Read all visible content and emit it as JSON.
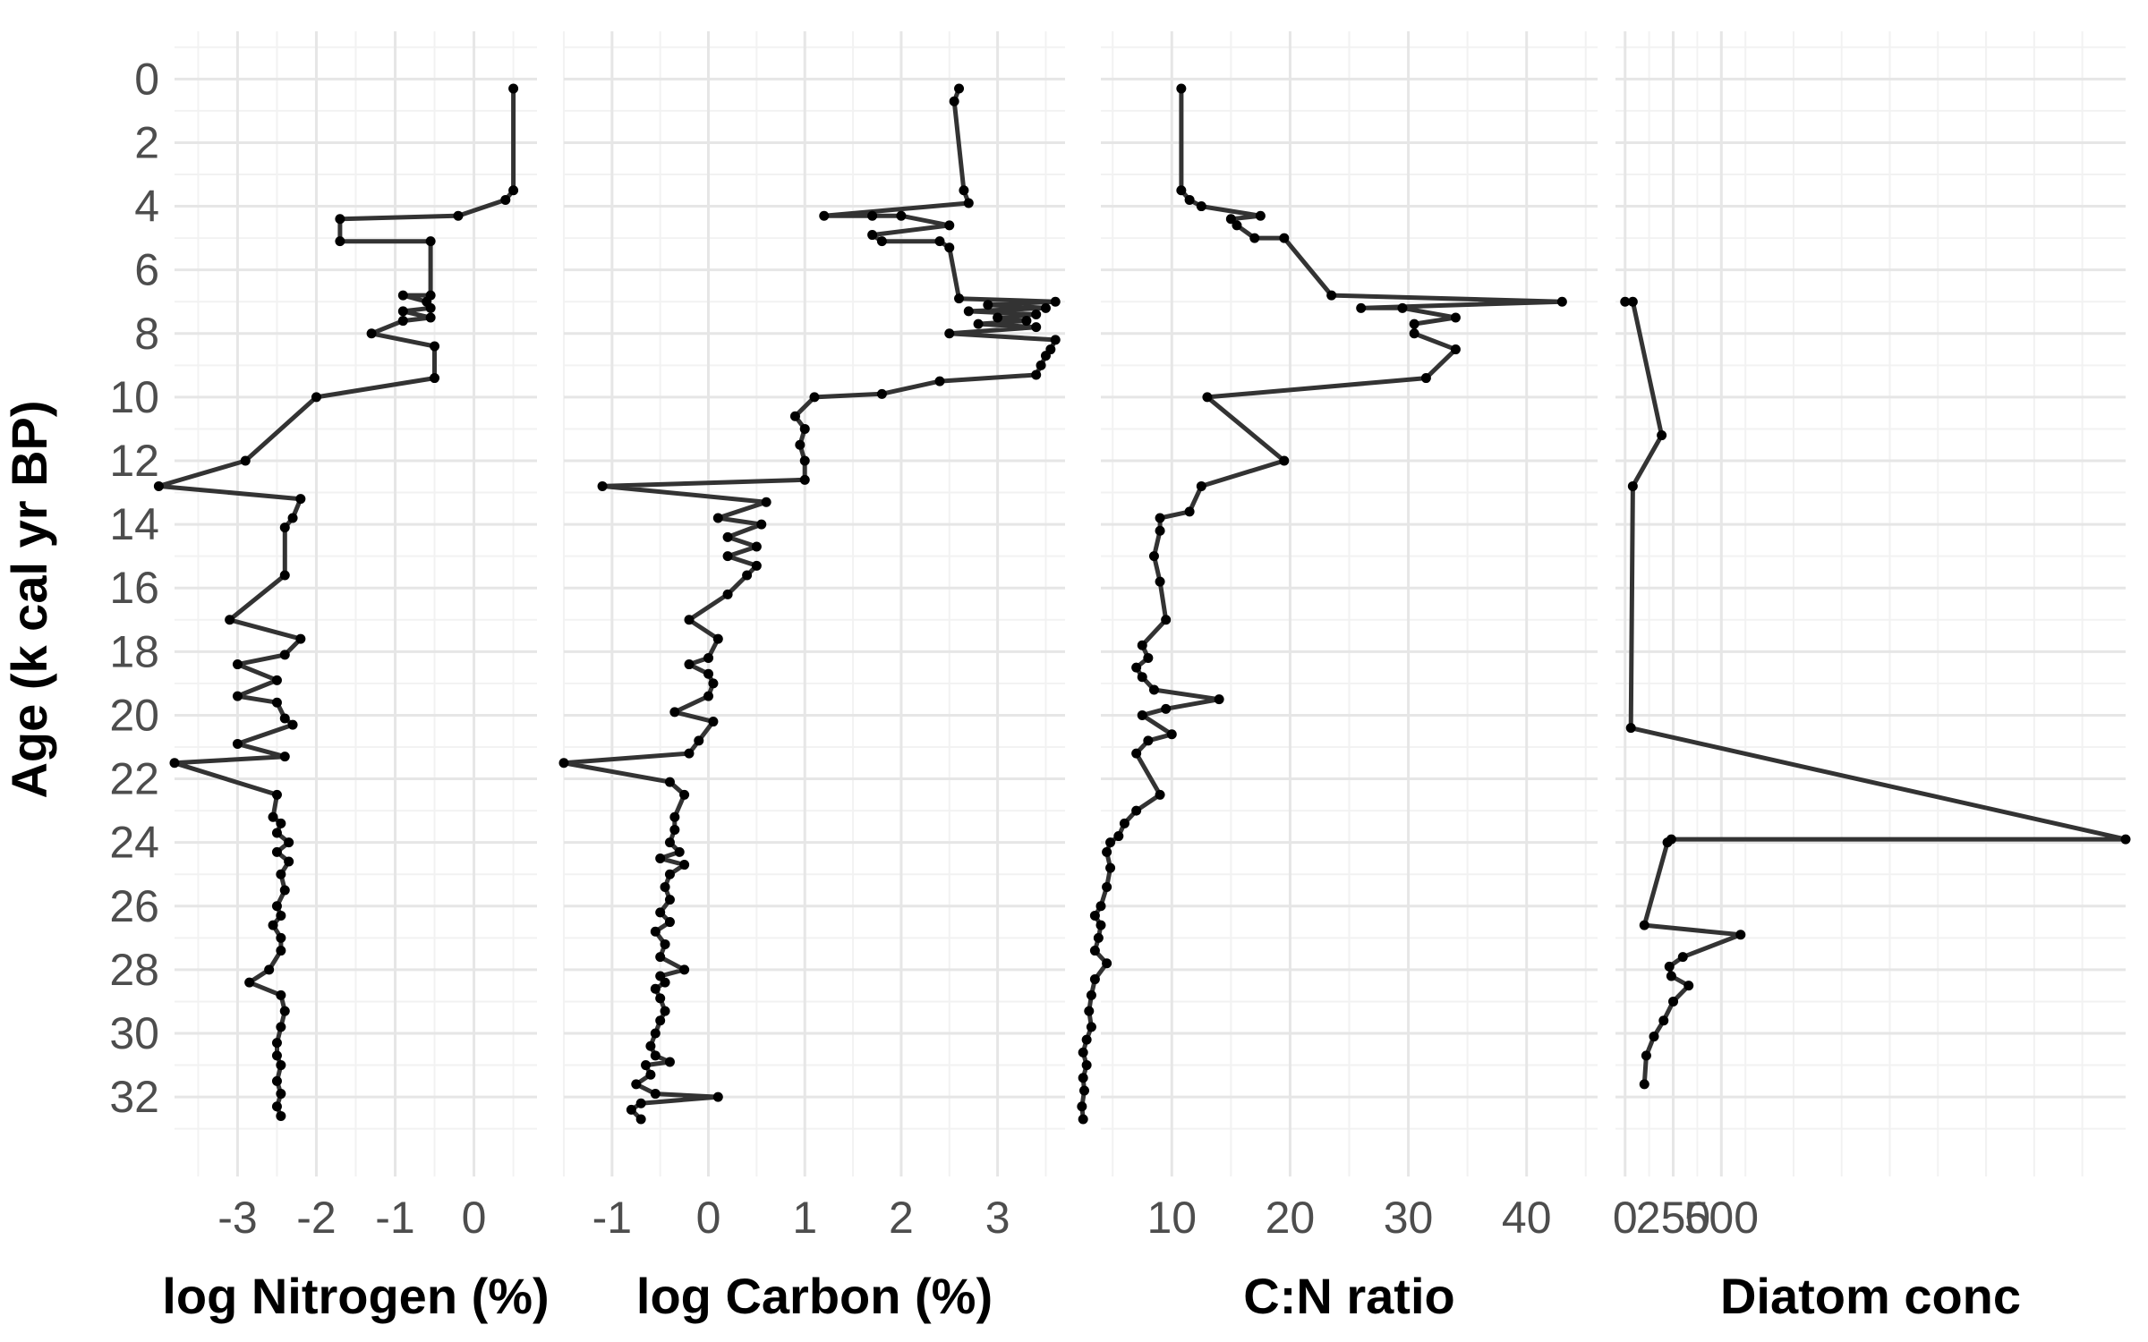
{
  "chart_data": {
    "type": "line",
    "y_axis": {
      "label": "Age (k cal yr BP)",
      "reversed": true,
      "ylim": [
        -1.5,
        34.5
      ],
      "ticks": [
        0,
        2,
        4,
        6,
        8,
        10,
        12,
        14,
        16,
        18,
        20,
        22,
        24,
        26,
        28,
        30,
        32
      ]
    },
    "grid": true,
    "line_color": "#333333",
    "panels": [
      {
        "xlabel": "log Nitrogen (%)",
        "xlim": [
          -3.8,
          0.8
        ],
        "ticks": [
          -3,
          -2,
          -1,
          0
        ],
        "tick_labels": [
          "-3",
          "-2",
          "-1",
          "0"
        ],
        "points": [
          [
            0.5,
            0.3
          ],
          [
            0.5,
            3.5
          ],
          [
            0.4,
            3.8
          ],
          [
            -0.2,
            4.3
          ],
          [
            -1.7,
            4.4
          ],
          [
            -1.7,
            5.1
          ],
          [
            -0.55,
            5.1
          ],
          [
            -0.55,
            6.8
          ],
          [
            -0.9,
            6.8
          ],
          [
            -0.6,
            7.0
          ],
          [
            -0.55,
            7.2
          ],
          [
            -0.9,
            7.3
          ],
          [
            -0.55,
            7.5
          ],
          [
            -0.9,
            7.6
          ],
          [
            -1.3,
            8.0
          ],
          [
            -0.5,
            8.4
          ],
          [
            -0.5,
            9.4
          ],
          [
            -2.0,
            10.0
          ],
          [
            -2.9,
            12.0
          ],
          [
            -4.0,
            12.8
          ],
          [
            -2.2,
            13.2
          ],
          [
            -2.3,
            13.8
          ],
          [
            -2.4,
            14.1
          ],
          [
            -2.4,
            15.6
          ],
          [
            -3.1,
            17.0
          ],
          [
            -2.2,
            17.6
          ],
          [
            -2.4,
            18.1
          ],
          [
            -3.0,
            18.4
          ],
          [
            -2.5,
            18.9
          ],
          [
            -3.0,
            19.4
          ],
          [
            -2.5,
            19.6
          ],
          [
            -2.4,
            20.1
          ],
          [
            -2.3,
            20.3
          ],
          [
            -3.0,
            20.9
          ],
          [
            -2.4,
            21.3
          ],
          [
            -3.8,
            21.5
          ],
          [
            -2.5,
            22.5
          ],
          [
            -2.55,
            23.2
          ],
          [
            -2.45,
            23.4
          ],
          [
            -2.5,
            23.7
          ],
          [
            -2.35,
            24.0
          ],
          [
            -2.5,
            24.3
          ],
          [
            -2.35,
            24.6
          ],
          [
            -2.45,
            25.0
          ],
          [
            -2.4,
            25.5
          ],
          [
            -2.5,
            26.0
          ],
          [
            -2.45,
            26.3
          ],
          [
            -2.55,
            26.6
          ],
          [
            -2.45,
            27.0
          ],
          [
            -2.45,
            27.4
          ],
          [
            -2.6,
            28.0
          ],
          [
            -2.85,
            28.4
          ],
          [
            -2.45,
            28.8
          ],
          [
            -2.4,
            29.3
          ],
          [
            -2.45,
            29.8
          ],
          [
            -2.5,
            30.3
          ],
          [
            -2.5,
            30.7
          ],
          [
            -2.45,
            31.0
          ],
          [
            -2.5,
            31.5
          ],
          [
            -2.45,
            31.9
          ],
          [
            -2.5,
            32.3
          ],
          [
            -2.45,
            32.6
          ]
        ]
      },
      {
        "xlabel": "log Carbon (%)",
        "xlim": [
          -1.5,
          3.7
        ],
        "ticks": [
          -1,
          0,
          1,
          2,
          3
        ],
        "tick_labels": [
          "-1",
          "0",
          "1",
          "2",
          "3"
        ],
        "points": [
          [
            2.6,
            0.3
          ],
          [
            2.55,
            0.7
          ],
          [
            2.65,
            3.5
          ],
          [
            2.7,
            3.9
          ],
          [
            1.2,
            4.3
          ],
          [
            1.7,
            4.3
          ],
          [
            2.0,
            4.3
          ],
          [
            2.5,
            4.6
          ],
          [
            1.7,
            4.9
          ],
          [
            1.8,
            5.1
          ],
          [
            2.4,
            5.1
          ],
          [
            2.5,
            5.3
          ],
          [
            2.6,
            6.9
          ],
          [
            3.6,
            7.0
          ],
          [
            2.9,
            7.1
          ],
          [
            3.5,
            7.2
          ],
          [
            2.7,
            7.3
          ],
          [
            3.4,
            7.4
          ],
          [
            3.0,
            7.5
          ],
          [
            3.3,
            7.6
          ],
          [
            2.8,
            7.7
          ],
          [
            3.4,
            7.8
          ],
          [
            2.5,
            8.0
          ],
          [
            3.6,
            8.2
          ],
          [
            3.55,
            8.5
          ],
          [
            3.5,
            8.7
          ],
          [
            3.45,
            9.0
          ],
          [
            3.4,
            9.3
          ],
          [
            2.4,
            9.5
          ],
          [
            1.8,
            9.9
          ],
          [
            1.1,
            10.0
          ],
          [
            0.9,
            10.6
          ],
          [
            1.0,
            11.0
          ],
          [
            0.95,
            11.5
          ],
          [
            1.0,
            12.0
          ],
          [
            1.0,
            12.6
          ],
          [
            -1.1,
            12.8
          ],
          [
            0.6,
            13.3
          ],
          [
            0.1,
            13.8
          ],
          [
            0.55,
            14.0
          ],
          [
            0.2,
            14.4
          ],
          [
            0.5,
            14.7
          ],
          [
            0.2,
            15.0
          ],
          [
            0.5,
            15.3
          ],
          [
            0.4,
            15.6
          ],
          [
            0.2,
            16.2
          ],
          [
            -0.2,
            17.0
          ],
          [
            0.1,
            17.6
          ],
          [
            0.0,
            18.2
          ],
          [
            -0.2,
            18.4
          ],
          [
            0.0,
            18.7
          ],
          [
            0.05,
            19.0
          ],
          [
            0.0,
            19.4
          ],
          [
            -0.35,
            19.9
          ],
          [
            0.05,
            20.2
          ],
          [
            -0.1,
            20.8
          ],
          [
            -0.2,
            21.2
          ],
          [
            -1.5,
            21.5
          ],
          [
            -0.4,
            22.1
          ],
          [
            -0.25,
            22.5
          ],
          [
            -0.35,
            23.2
          ],
          [
            -0.35,
            23.6
          ],
          [
            -0.4,
            24.0
          ],
          [
            -0.3,
            24.3
          ],
          [
            -0.5,
            24.5
          ],
          [
            -0.25,
            24.7
          ],
          [
            -0.4,
            25.0
          ],
          [
            -0.45,
            25.4
          ],
          [
            -0.4,
            25.8
          ],
          [
            -0.5,
            26.2
          ],
          [
            -0.4,
            26.5
          ],
          [
            -0.55,
            26.8
          ],
          [
            -0.45,
            27.2
          ],
          [
            -0.5,
            27.6
          ],
          [
            -0.25,
            28.0
          ],
          [
            -0.5,
            28.2
          ],
          [
            -0.45,
            28.4
          ],
          [
            -0.55,
            28.6
          ],
          [
            -0.5,
            28.9
          ],
          [
            -0.45,
            29.3
          ],
          [
            -0.5,
            29.6
          ],
          [
            -0.55,
            30.0
          ],
          [
            -0.6,
            30.4
          ],
          [
            -0.55,
            30.7
          ],
          [
            -0.4,
            30.9
          ],
          [
            -0.65,
            31.0
          ],
          [
            -0.6,
            31.3
          ],
          [
            -0.75,
            31.6
          ],
          [
            -0.55,
            31.9
          ],
          [
            0.1,
            32.0
          ],
          [
            -0.7,
            32.2
          ],
          [
            -0.8,
            32.4
          ],
          [
            -0.7,
            32.7
          ]
        ]
      },
      {
        "xlabel": "C:N ratio",
        "xlim": [
          4,
          46
        ],
        "ticks": [
          10,
          20,
          30,
          40
        ],
        "tick_labels": [
          "10",
          "20",
          "30",
          "40"
        ],
        "points": [
          [
            10.8,
            0.3
          ],
          [
            10.8,
            3.5
          ],
          [
            11.5,
            3.8
          ],
          [
            12.5,
            4.0
          ],
          [
            17.5,
            4.3
          ],
          [
            15.0,
            4.4
          ],
          [
            15.5,
            4.6
          ],
          [
            17.0,
            5.0
          ],
          [
            19.5,
            5.0
          ],
          [
            23.5,
            6.8
          ],
          [
            43.0,
            7.0
          ],
          [
            26.0,
            7.2
          ],
          [
            29.5,
            7.2
          ],
          [
            34.0,
            7.5
          ],
          [
            30.5,
            7.7
          ],
          [
            30.5,
            8.0
          ],
          [
            34.0,
            8.5
          ],
          [
            31.5,
            9.4
          ],
          [
            13.0,
            10.0
          ],
          [
            19.5,
            12.0
          ],
          [
            12.5,
            12.8
          ],
          [
            11.5,
            13.6
          ],
          [
            9.0,
            13.8
          ],
          [
            9.0,
            14.2
          ],
          [
            8.5,
            15.0
          ],
          [
            9.0,
            15.8
          ],
          [
            9.5,
            17.0
          ],
          [
            7.5,
            17.8
          ],
          [
            8.0,
            18.2
          ],
          [
            7.0,
            18.5
          ],
          [
            7.5,
            18.8
          ],
          [
            8.5,
            19.2
          ],
          [
            14.0,
            19.5
          ],
          [
            9.5,
            19.8
          ],
          [
            7.5,
            20.0
          ],
          [
            10.0,
            20.6
          ],
          [
            8.0,
            20.8
          ],
          [
            7.0,
            21.2
          ],
          [
            9.0,
            22.5
          ],
          [
            7.0,
            23.0
          ],
          [
            6.0,
            23.4
          ],
          [
            5.5,
            23.8
          ],
          [
            4.8,
            24.0
          ],
          [
            4.5,
            24.3
          ],
          [
            4.8,
            24.8
          ],
          [
            4.5,
            25.4
          ],
          [
            4.0,
            26.0
          ],
          [
            3.5,
            26.3
          ],
          [
            4.0,
            26.6
          ],
          [
            3.8,
            27.0
          ],
          [
            3.5,
            27.4
          ],
          [
            4.5,
            27.8
          ],
          [
            3.5,
            28.3
          ],
          [
            3.2,
            28.8
          ],
          [
            3.0,
            29.3
          ],
          [
            3.2,
            29.8
          ],
          [
            2.8,
            30.2
          ],
          [
            2.5,
            30.6
          ],
          [
            2.8,
            31.0
          ],
          [
            2.5,
            31.4
          ],
          [
            2.6,
            31.8
          ],
          [
            2.4,
            32.3
          ],
          [
            2.5,
            32.7
          ]
        ]
      },
      {
        "xlabel": "Diatom conc",
        "xlim": [
          -50,
          2600
        ],
        "ticks": [
          0,
          250,
          500
        ],
        "tick_labels": [
          "0",
          "250",
          "500"
        ],
        "points": [
          [
            0,
            7.0
          ],
          [
            40,
            7.0
          ],
          [
            190,
            11.2
          ],
          [
            40,
            12.8
          ],
          [
            30,
            20.4
          ],
          [
            2600,
            23.9
          ],
          [
            240,
            23.9
          ],
          [
            220,
            24.0
          ],
          [
            100,
            26.6
          ],
          [
            600,
            26.9
          ],
          [
            300,
            27.6
          ],
          [
            230,
            27.9
          ],
          [
            240,
            28.2
          ],
          [
            330,
            28.5
          ],
          [
            250,
            29.0
          ],
          [
            200,
            29.6
          ],
          [
            150,
            30.1
          ],
          [
            110,
            30.7
          ],
          [
            100,
            31.6
          ]
        ]
      }
    ]
  }
}
